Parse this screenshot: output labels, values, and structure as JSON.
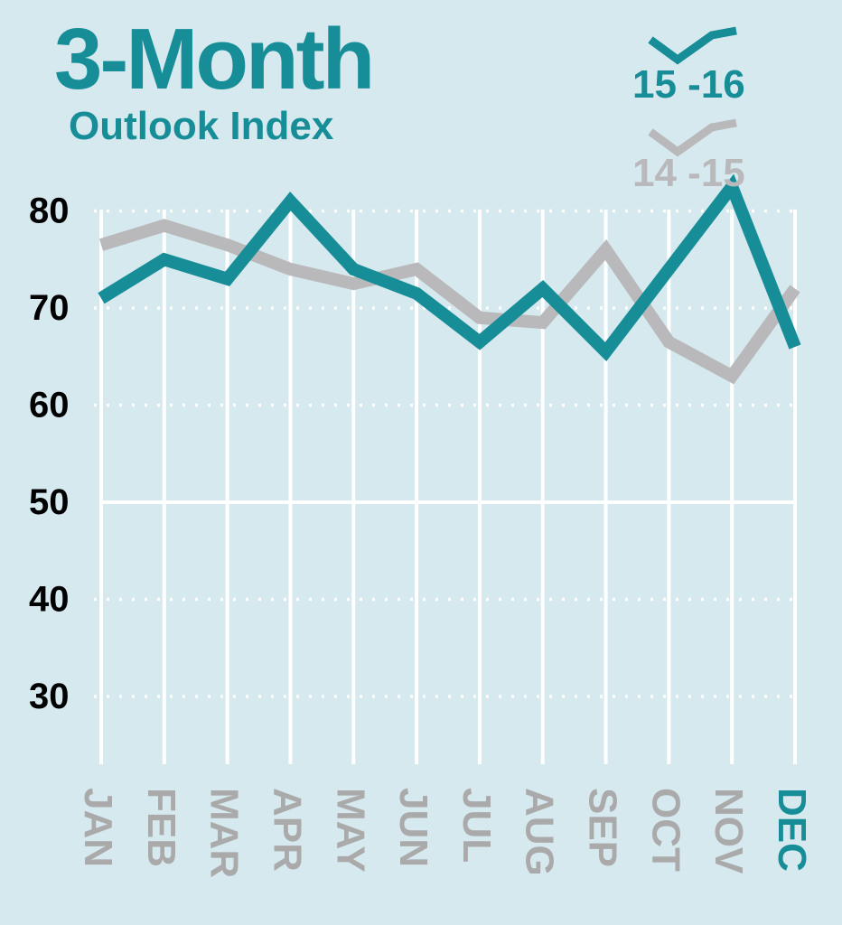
{
  "chart_data": {
    "type": "line",
    "title": "3-Month",
    "subtitle": "Outlook Index",
    "categories": [
      "JAN",
      "FEB",
      "MAR",
      "APR",
      "MAY",
      "JUN",
      "JUL",
      "AUG",
      "SEP",
      "OCT",
      "NOV",
      "DEC"
    ],
    "highlight_category": "DEC",
    "y_ticks": [
      30,
      40,
      50,
      60,
      70,
      80
    ],
    "ylim": [
      22,
      83
    ],
    "grid": true,
    "legend_placement": "top-right",
    "series": [
      {
        "name": "15 -16",
        "color": "#168d97",
        "values": [
          71,
          75,
          73,
          81,
          74,
          71.5,
          66.5,
          72,
          65.5,
          74,
          82.5,
          66
        ]
      },
      {
        "name": "14 -15",
        "color": "#b9b9bb",
        "values": [
          76.5,
          78.5,
          76.5,
          74,
          72.5,
          74,
          69,
          68.5,
          76,
          66.5,
          63,
          72
        ]
      }
    ]
  },
  "colors": {
    "background": "#d6e9ef",
    "accent": "#168d97",
    "muted": "#b9b9bb",
    "grid": "#ffffff",
    "tick_text": "#000000",
    "month_text": "#aaaaaa"
  }
}
